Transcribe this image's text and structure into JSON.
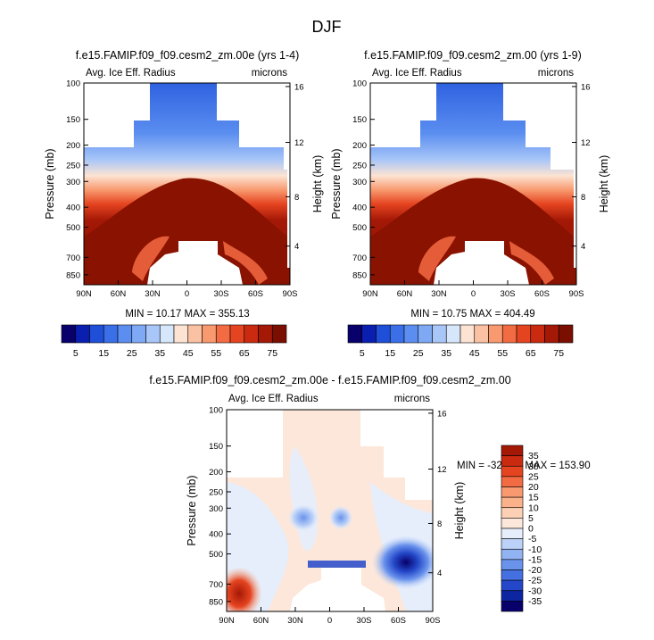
{
  "page": {
    "title": "DJF"
  },
  "chart_data": [
    {
      "type": "heatmap",
      "title": "f.e15.FAMIP.f09_f09.cesm2_zm.00e (yrs 1-4)",
      "left_label": "Avg. Ice Eff. Radius",
      "right_label": "microns",
      "ylabel": "Pressure (mb)",
      "ylabel_right": "Height (km)",
      "xticks": [
        "90N",
        "60N",
        "30N",
        "0",
        "30S",
        "60S",
        "90S"
      ],
      "yticks": [
        "100",
        "150",
        "200",
        "250",
        "300",
        "400",
        "500",
        "700",
        "850"
      ],
      "yticks_right": [
        "16",
        "12",
        "8",
        "4"
      ],
      "stats": "MIN = 10.17   MAX = 355.13",
      "min": 10.17,
      "max": 355.13
    },
    {
      "type": "heatmap",
      "title": "f.e15.FAMIP.f09_f09.cesm2_zm.00 (yrs 1-9)",
      "left_label": "Avg. Ice Eff. Radius",
      "right_label": "microns",
      "ylabel": "Pressure (mb)",
      "ylabel_right": "Height (km)",
      "xticks": [
        "90N",
        "60N",
        "30N",
        "0",
        "30S",
        "60S",
        "90S"
      ],
      "yticks": [
        "100",
        "150",
        "200",
        "250",
        "300",
        "400",
        "500",
        "700",
        "850"
      ],
      "yticks_right": [
        "16",
        "12",
        "8",
        "4"
      ],
      "stats": "MIN = 10.75   MAX = 404.49",
      "min": 10.75,
      "max": 404.49
    },
    {
      "type": "heatmap",
      "title": "f.e15.FAMIP.f09_f09.cesm2_zm.00e - f.e15.FAMIP.f09_f09.cesm2_zm.00",
      "left_label": "Avg. Ice Eff. Radius",
      "right_label": "microns",
      "ylabel": "Pressure (mb)",
      "ylabel_right": "Height (km)",
      "xticks": [
        "90N",
        "60N",
        "30N",
        "0",
        "30S",
        "60S",
        "90S"
      ],
      "yticks": [
        "100",
        "150",
        "200",
        "250",
        "300",
        "400",
        "500",
        "700",
        "850"
      ],
      "yticks_right": [
        "16",
        "12",
        "8",
        "4"
      ],
      "stats": "MIN = -321.85   MAX = 153.90",
      "min": -321.85,
      "max": 153.9
    }
  ],
  "colorbar_abs": {
    "labels": [
      "5",
      "15",
      "25",
      "35",
      "45",
      "55",
      "65",
      "75"
    ],
    "colors": [
      "#08006b",
      "#0a1fb0",
      "#1f4ed8",
      "#3a6fe8",
      "#5b8ef0",
      "#7fa9f5",
      "#a8c6f8",
      "#d6e6fb",
      "#fde3d2",
      "#fbc1a3",
      "#f8996f",
      "#f36b42",
      "#e54420",
      "#c92a10",
      "#a41806",
      "#7a0e00"
    ]
  },
  "colorbar_diff": {
    "labels": [
      "35",
      "30",
      "25",
      "20",
      "15",
      "10",
      "5",
      "0",
      "-5",
      "-10",
      "-15",
      "-20",
      "-25",
      "-30",
      "-35"
    ],
    "colors": [
      "#a41806",
      "#c92a10",
      "#e54420",
      "#f36b42",
      "#f8996f",
      "#fbb28b",
      "#fcd0b4",
      "#fde7da",
      "#e6eefc",
      "#bcd2f8",
      "#92b3f2",
      "#6a93ec",
      "#4570e2",
      "#2347c8",
      "#0d25a0",
      "#08006b"
    ]
  }
}
